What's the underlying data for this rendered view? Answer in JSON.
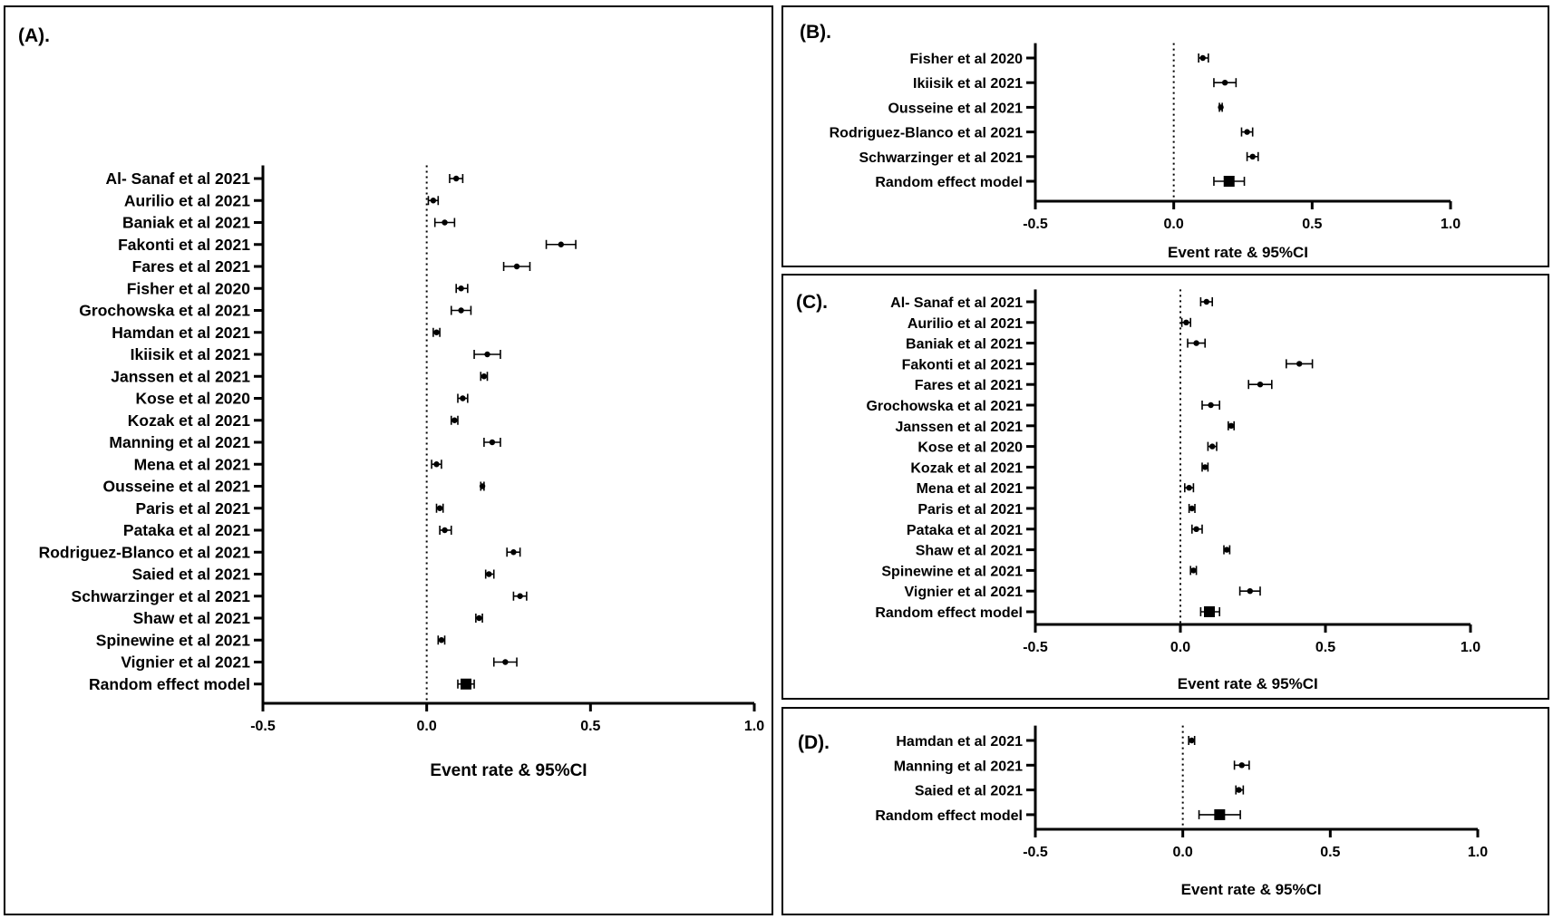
{
  "chart_data": [
    {
      "type": "forest",
      "panel_label": "(A).",
      "xlabel": "Event rate & 95%CI",
      "xlim": [
        -0.5,
        1.0
      ],
      "xticks": [
        "-0.5",
        "0.0",
        "0.5",
        "1.0"
      ],
      "reference_line": 0.0,
      "studies": [
        {
          "name": "Al- Sanaf et al 2021",
          "estimate": 0.09,
          "lower": 0.07,
          "upper": 0.11
        },
        {
          "name": "Aurilio et al 2021",
          "estimate": 0.02,
          "lower": 0.005,
          "upper": 0.035
        },
        {
          "name": "Baniak et al 2021",
          "estimate": 0.055,
          "lower": 0.025,
          "upper": 0.085
        },
        {
          "name": "Fakonti et al 2021",
          "estimate": 0.41,
          "lower": 0.365,
          "upper": 0.455
        },
        {
          "name": "Fares et al 2021",
          "estimate": 0.275,
          "lower": 0.235,
          "upper": 0.315
        },
        {
          "name": "Fisher et al 2020",
          "estimate": 0.105,
          "lower": 0.09,
          "upper": 0.125
        },
        {
          "name": "Grochowska et al 2021",
          "estimate": 0.105,
          "lower": 0.075,
          "upper": 0.135
        },
        {
          "name": "Hamdan et al 2021",
          "estimate": 0.03,
          "lower": 0.02,
          "upper": 0.04
        },
        {
          "name": "Ikiisik et al 2021",
          "estimate": 0.185,
          "lower": 0.145,
          "upper": 0.225
        },
        {
          "name": "Janssen et al 2021",
          "estimate": 0.175,
          "lower": 0.165,
          "upper": 0.185
        },
        {
          "name": "Kose et al 2020",
          "estimate": 0.11,
          "lower": 0.095,
          "upper": 0.125
        },
        {
          "name": "Kozak et al 2021",
          "estimate": 0.085,
          "lower": 0.075,
          "upper": 0.095
        },
        {
          "name": "Manning et al 2021",
          "estimate": 0.2,
          "lower": 0.175,
          "upper": 0.225
        },
        {
          "name": "Mena et al 2021",
          "estimate": 0.03,
          "lower": 0.015,
          "upper": 0.045
        },
        {
          "name": "Ousseine et al 2021",
          "estimate": 0.17,
          "lower": 0.165,
          "upper": 0.175
        },
        {
          "name": "Paris et al 2021",
          "estimate": 0.04,
          "lower": 0.03,
          "upper": 0.05
        },
        {
          "name": "Pataka et al 2021",
          "estimate": 0.055,
          "lower": 0.04,
          "upper": 0.075
        },
        {
          "name": "Rodriguez-Blanco et al 2021",
          "estimate": 0.265,
          "lower": 0.245,
          "upper": 0.285
        },
        {
          "name": "Saied et al 2021",
          "estimate": 0.19,
          "lower": 0.18,
          "upper": 0.205
        },
        {
          "name": "Schwarzinger et al 2021",
          "estimate": 0.285,
          "lower": 0.265,
          "upper": 0.305
        },
        {
          "name": "Shaw et al 2021",
          "estimate": 0.16,
          "lower": 0.15,
          "upper": 0.17
        },
        {
          "name": "Spinewine et al 2021",
          "estimate": 0.045,
          "lower": 0.035,
          "upper": 0.055
        },
        {
          "name": "Vignier et al 2021",
          "estimate": 0.24,
          "lower": 0.205,
          "upper": 0.275
        },
        {
          "name": "Random effect model",
          "estimate": 0.12,
          "lower": 0.095,
          "upper": 0.145,
          "pooled": true
        }
      ]
    },
    {
      "type": "forest",
      "panel_label": "(B).",
      "xlabel": "Event rate & 95%CI",
      "xlim": [
        -0.5,
        1.0
      ],
      "xticks": [
        "-0.5",
        "0.0",
        "0.5",
        "1.0"
      ],
      "reference_line": 0.0,
      "studies": [
        {
          "name": "Fisher et al 2020",
          "estimate": 0.105,
          "lower": 0.09,
          "upper": 0.125
        },
        {
          "name": "Ikiisik et al 2021",
          "estimate": 0.185,
          "lower": 0.145,
          "upper": 0.225
        },
        {
          "name": "Ousseine et al 2021",
          "estimate": 0.17,
          "lower": 0.165,
          "upper": 0.175
        },
        {
          "name": "Rodriguez-Blanco et al 2021",
          "estimate": 0.265,
          "lower": 0.245,
          "upper": 0.285
        },
        {
          "name": "Schwarzinger et al 2021",
          "estimate": 0.285,
          "lower": 0.265,
          "upper": 0.305
        },
        {
          "name": "Random effect model",
          "estimate": 0.2,
          "lower": 0.145,
          "upper": 0.255,
          "pooled": true
        }
      ]
    },
    {
      "type": "forest",
      "panel_label": "(C).",
      "xlabel": "Event rate & 95%CI",
      "xlim": [
        -0.5,
        1.0
      ],
      "xticks": [
        "-0.5",
        "0.0",
        "0.5",
        "1.0"
      ],
      "reference_line": 0.0,
      "studies": [
        {
          "name": "Al- Sanaf et al 2021",
          "estimate": 0.09,
          "lower": 0.07,
          "upper": 0.11
        },
        {
          "name": "Aurilio et al 2021",
          "estimate": 0.02,
          "lower": 0.005,
          "upper": 0.035
        },
        {
          "name": "Baniak et al 2021",
          "estimate": 0.055,
          "lower": 0.025,
          "upper": 0.085
        },
        {
          "name": "Fakonti et al 2021",
          "estimate": 0.41,
          "lower": 0.365,
          "upper": 0.455
        },
        {
          "name": "Fares et al 2021",
          "estimate": 0.275,
          "lower": 0.235,
          "upper": 0.315
        },
        {
          "name": "Grochowska et al 2021",
          "estimate": 0.105,
          "lower": 0.075,
          "upper": 0.135
        },
        {
          "name": "Janssen et al 2021",
          "estimate": 0.175,
          "lower": 0.165,
          "upper": 0.185
        },
        {
          "name": "Kose et al 2020",
          "estimate": 0.11,
          "lower": 0.095,
          "upper": 0.125
        },
        {
          "name": "Kozak et al 2021",
          "estimate": 0.085,
          "lower": 0.075,
          "upper": 0.095
        },
        {
          "name": "Mena et al 2021",
          "estimate": 0.03,
          "lower": 0.015,
          "upper": 0.045
        },
        {
          "name": "Paris et al 2021",
          "estimate": 0.04,
          "lower": 0.03,
          "upper": 0.05
        },
        {
          "name": "Pataka et al 2021",
          "estimate": 0.055,
          "lower": 0.04,
          "upper": 0.075
        },
        {
          "name": "Shaw et al 2021",
          "estimate": 0.16,
          "lower": 0.15,
          "upper": 0.17
        },
        {
          "name": "Spinewine et al 2021",
          "estimate": 0.045,
          "lower": 0.035,
          "upper": 0.055
        },
        {
          "name": "Vignier et al 2021",
          "estimate": 0.24,
          "lower": 0.205,
          "upper": 0.275
        },
        {
          "name": "Random effect model",
          "estimate": 0.1,
          "lower": 0.07,
          "upper": 0.135,
          "pooled": true
        }
      ]
    },
    {
      "type": "forest",
      "panel_label": "(D).",
      "xlabel": "Event rate & 95%CI",
      "xlim": [
        -0.5,
        1.0
      ],
      "xticks": [
        "-0.5",
        "0.0",
        "0.5",
        "1.0"
      ],
      "reference_line": 0.0,
      "studies": [
        {
          "name": "Hamdan et al 2021",
          "estimate": 0.03,
          "lower": 0.02,
          "upper": 0.04
        },
        {
          "name": "Manning et al 2021",
          "estimate": 0.2,
          "lower": 0.175,
          "upper": 0.225
        },
        {
          "name": "Saied et al 2021",
          "estimate": 0.19,
          "lower": 0.18,
          "upper": 0.205
        },
        {
          "name": "Random effect model",
          "estimate": 0.125,
          "lower": 0.055,
          "upper": 0.195,
          "pooled": true
        }
      ]
    }
  ]
}
